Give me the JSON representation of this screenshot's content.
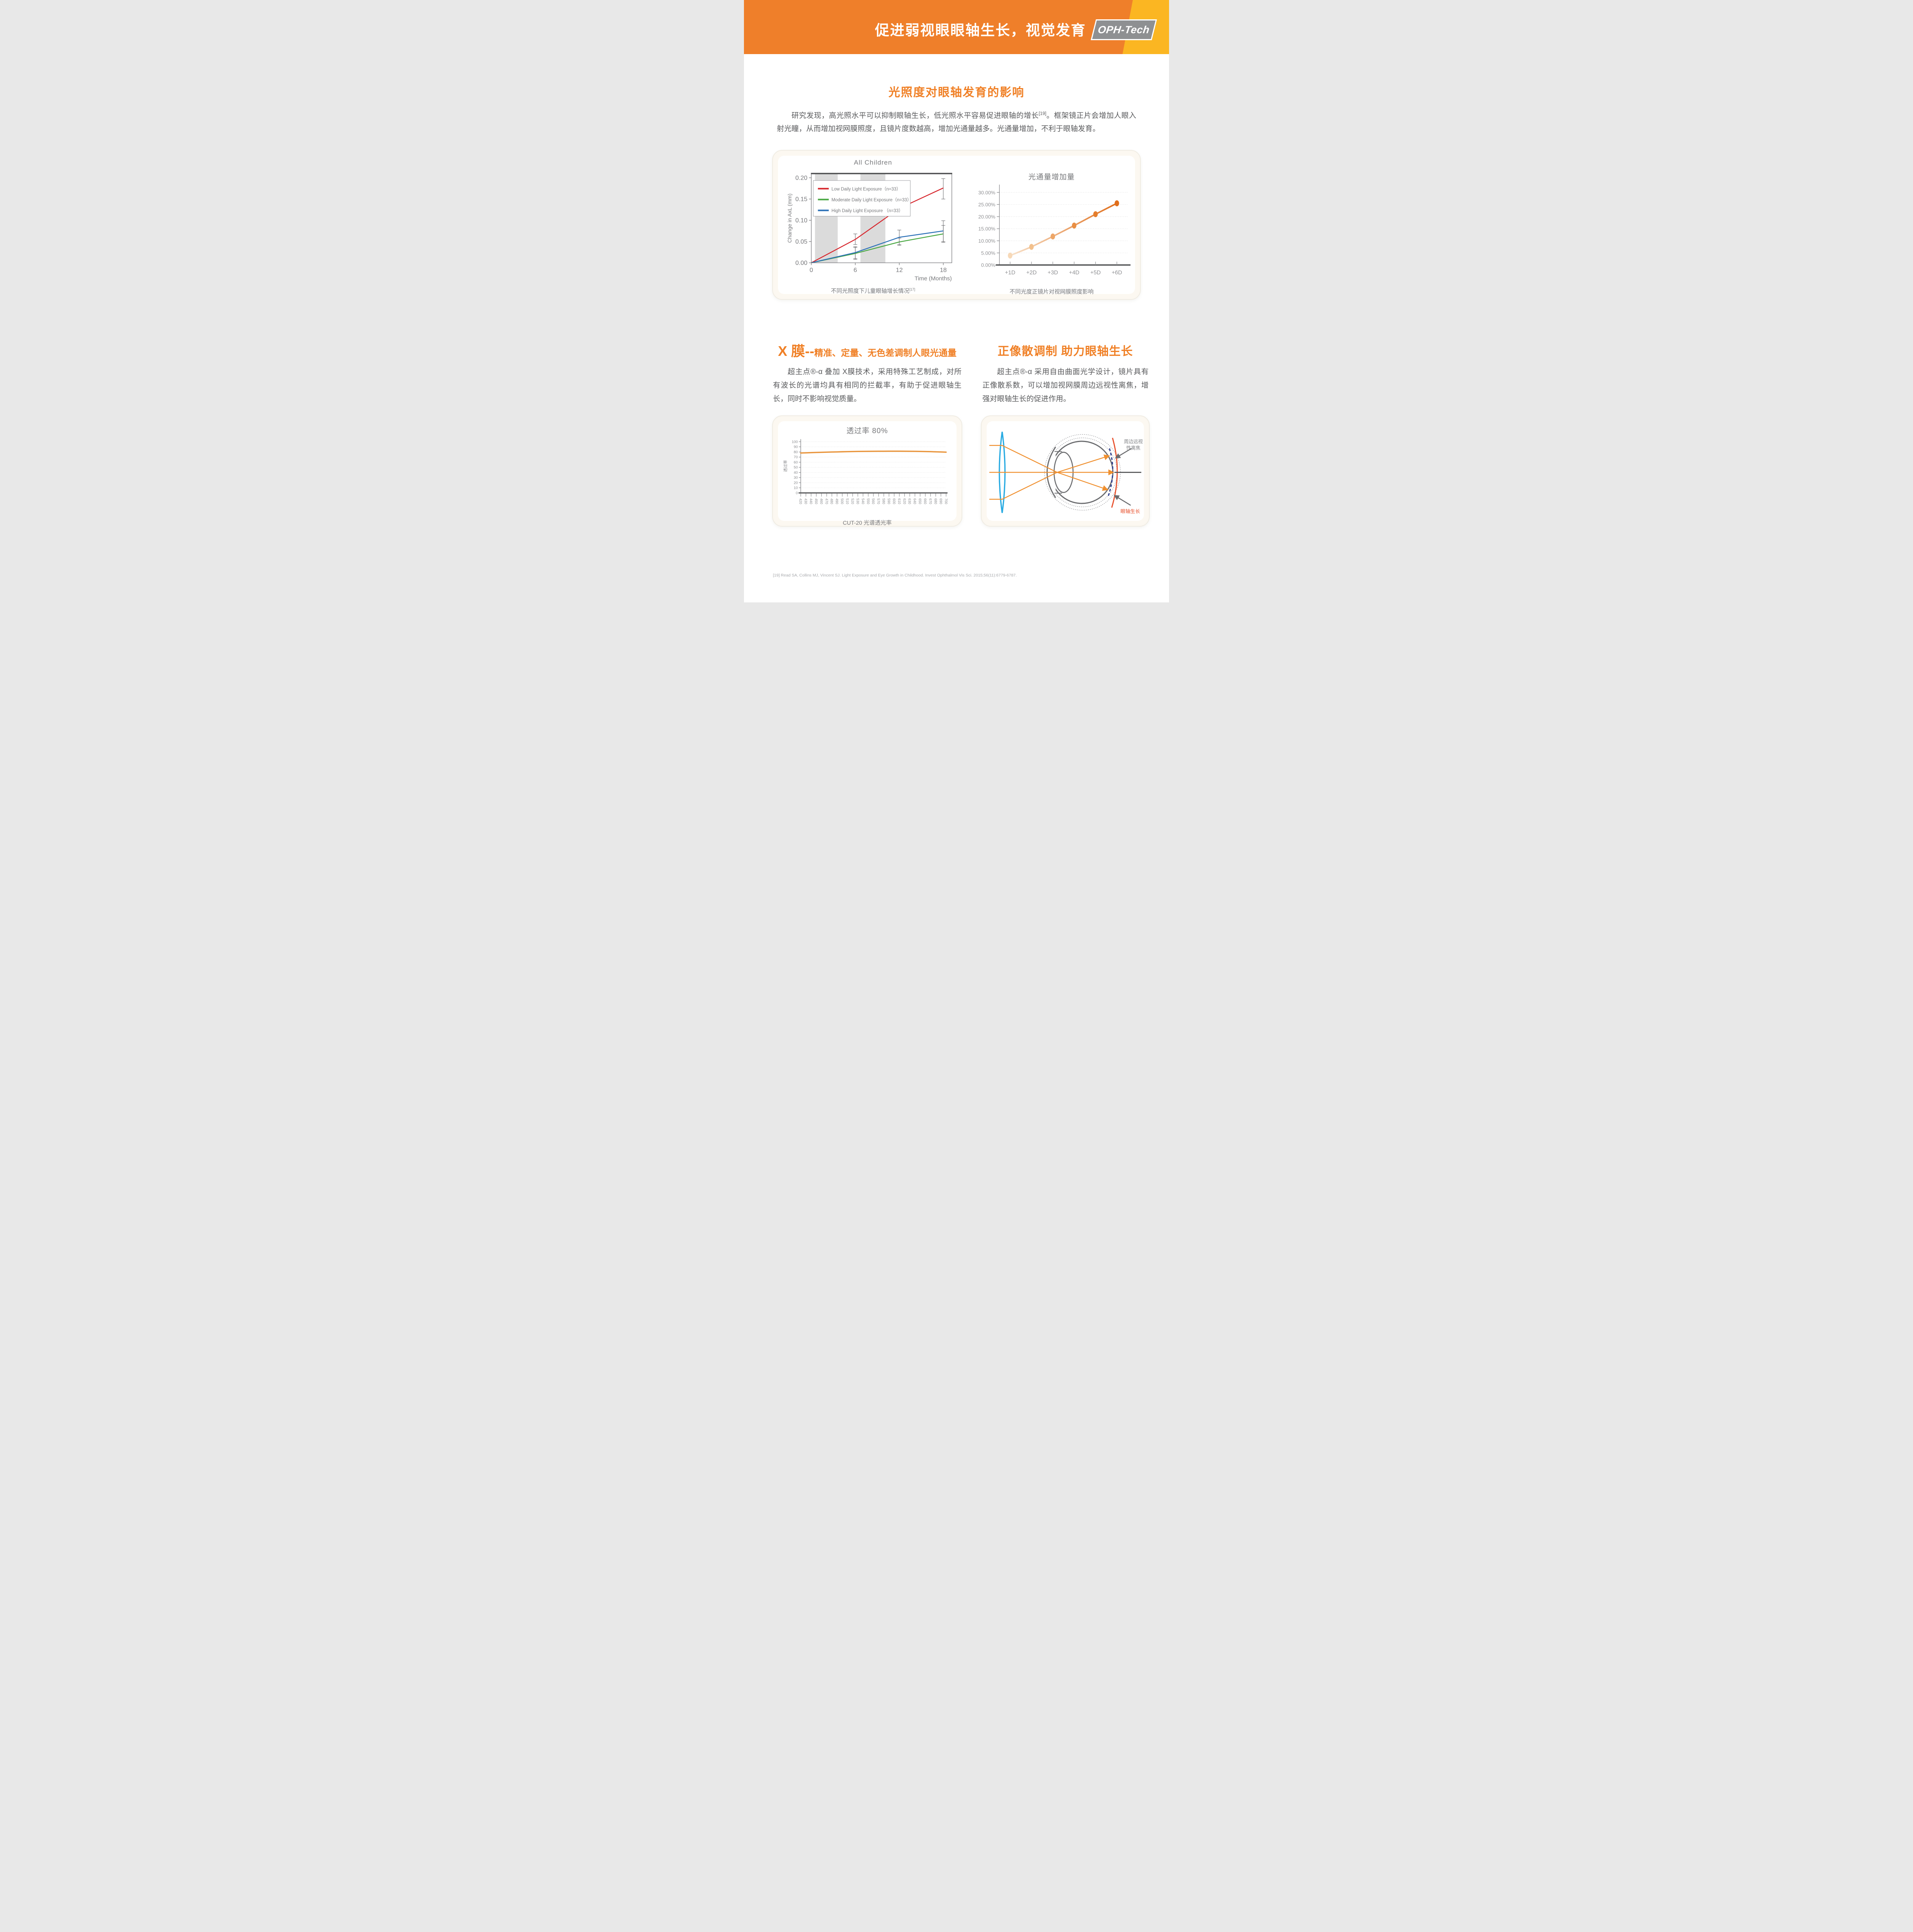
{
  "header": {
    "title": "促进弱视眼眼轴生长，视觉发育",
    "logo": "OPH-Tech"
  },
  "colors": {
    "header_orange": "#EF7F2A",
    "header_yellow": "#FBB622",
    "logo_gray": "#8E9092",
    "accent_orange": "#F08026",
    "body_text": "#595A5C",
    "chart_text": "#77787B",
    "series_red": "#D7282F",
    "series_green": "#4AA843",
    "series_blue": "#2C71B7",
    "flux_orange": "#E06E1B",
    "transmission_orange": "#E9953C",
    "growth_red": "#E8512D"
  },
  "section1": {
    "title": "光照度对眼轴发育的影响",
    "para_1": "研究发现，高光照水平可以抑制眼轴生长，低光照水平容易促进眼轴的增长",
    "para_ref": "[19]",
    "para_2": "。框架镜正片会增加人眼入射光瞳，从而增加视网膜照度，且镜片度数越高，增加光通量越多。光通量增加，不利于眼轴发育。"
  },
  "chart_data": [
    {
      "type": "line",
      "title": "All Children",
      "xlabel": "Time (Months)",
      "ylabel": "Change in AxL (mm)",
      "x": [
        0,
        6,
        12,
        18
      ],
      "xlim": [
        0,
        19.2
      ],
      "ylim": [
        0,
        0.21
      ],
      "ytick_values": [
        0,
        0.05,
        0.1,
        0.15,
        0.2
      ],
      "ytick_labels": [
        "0.00",
        "0.05",
        "0.10",
        "0.15",
        "0.20"
      ],
      "shaded_bands_months": [
        [
          0.5,
          3.6
        ],
        [
          6.7,
          10.1
        ]
      ],
      "grid": false,
      "legend_position": "upper-left",
      "series": [
        {
          "name": "Low Daily Light Exposure（n=33）",
          "color": "#D7282F",
          "values": [
            0,
            0.055,
            0.128,
            0.176
          ],
          "err_lo": [
            0,
            0.043,
            0.114,
            0.15
          ],
          "err_hi": [
            0,
            0.068,
            0.141,
            0.198
          ]
        },
        {
          "name": "Moderate Daily Light Exposure（n=33）",
          "color": "#4AA843",
          "values": [
            0,
            0.022,
            0.049,
            0.068
          ],
          "err_lo": [
            0,
            0.008,
            0.041,
            0.048
          ],
          "err_hi": [
            0,
            0.036,
            0.058,
            0.088
          ]
        },
        {
          "name": "High Daily Light Exposure （n=33）",
          "color": "#2C71B7",
          "values": [
            0,
            0.024,
            0.06,
            0.075
          ],
          "err_lo": [
            0,
            0.01,
            0.043,
            0.05
          ],
          "err_hi": [
            0,
            0.038,
            0.077,
            0.099
          ]
        }
      ],
      "caption": "不同光照度下儿童眼轴增长情况",
      "caption_sup": "[17]"
    },
    {
      "type": "line",
      "title": "光通量增加量",
      "categories": [
        "+1D",
        "+2D",
        "+3D",
        "+4D",
        "+5D",
        "+6D"
      ],
      "values": [
        3.9,
        7.5,
        11.8,
        16.3,
        21.0,
        25.5
      ],
      "unit": "%",
      "ylim": [
        0,
        32
      ],
      "ytick_values": [
        0,
        5,
        10,
        15,
        20,
        25,
        30
      ],
      "ytick_labels": [
        "0.00%",
        "5.00%",
        "10.00%",
        "15.00%",
        "20.00%",
        "25.00%",
        "30.00%"
      ],
      "grid": "dotted-horizontal",
      "marker_colors": [
        "#F7D9B8",
        "#F2C08C",
        "#EDA668",
        "#E98F44",
        "#E57E2C",
        "#E06E1B"
      ],
      "line_gradient": [
        "#F8E3CC",
        "#E06E1B"
      ],
      "caption": "不同光度正镜片对视网膜照度影响"
    },
    {
      "type": "line",
      "title": "透过率 80%",
      "ylabel": "透过率",
      "categories": [
        420,
        430,
        440,
        450,
        460,
        470,
        480,
        490,
        500,
        510,
        520,
        530,
        540,
        550,
        560,
        570,
        580,
        590,
        600,
        610,
        620,
        630,
        640,
        650,
        660,
        670,
        680,
        690,
        700
      ],
      "values": [
        78.0,
        78.3,
        78.7,
        79.0,
        79.3,
        79.6,
        79.9,
        80.1,
        80.4,
        80.6,
        80.8,
        81.0,
        81.1,
        81.2,
        81.3,
        81.4,
        81.4,
        81.5,
        81.5,
        81.5,
        81.4,
        81.3,
        81.2,
        81.0,
        80.8,
        80.6,
        80.3,
        80.0,
        79.6
      ],
      "ylim": [
        0,
        105
      ],
      "ytick_values": [
        0,
        10,
        20,
        30,
        40,
        50,
        60,
        70,
        80,
        90,
        100
      ],
      "grid": "dotted-horizontal",
      "line_color": "#E9953C",
      "caption": "CUT-20 光谱透光率"
    }
  ],
  "section2_left": {
    "heading_big": "X 膜--",
    "heading_small": "精准、定量、无色差调制人眼光通量",
    "para": "超主点®-α 叠加 X膜技术，采用特殊工艺制成，对所有波长的光谱均具有相同的拦截率，有助于促进眼轴生长，同时不影响视觉质量。"
  },
  "section2_right": {
    "heading": "正像散调制 助力眼轴生长",
    "para": "超主点®-α 采用自由曲面光学设计，镜片具有正像散系数，可以增加视网膜周边远视性离焦，增强对眼轴生长的促进作用。"
  },
  "diagram": {
    "defocus1": "周边远视",
    "defocus2": "性离焦",
    "growth": "眼轴生长"
  },
  "footer": {
    "reference": "[19] Read SA, Collins MJ, Vincent SJ. Light Exposure and Eye Growth in Childhood. Invest Ophthalmol Vis Sci. 2015;56(11):6779-6787."
  }
}
